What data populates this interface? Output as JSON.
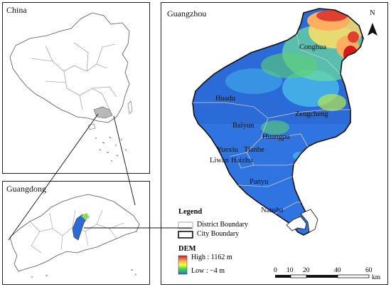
{
  "panels": {
    "china": {
      "title": "China"
    },
    "guangdong": {
      "title": "Guangdong"
    },
    "guangzhou": {
      "title": "Guangzhou"
    }
  },
  "districts": [
    "Conghua",
    "Huadu",
    "Zengcheng",
    "Baiyun",
    "Huangpu",
    "Yuexiu",
    "Tianhe",
    "Liwan",
    "Haizhu",
    "Panyu",
    "Nansha"
  ],
  "legend": {
    "title": "Legend",
    "district_boundary": "District Boundary",
    "city_boundary": "City Boundary",
    "dem_title": "DEM",
    "dem_high": "High : 1162 m",
    "dem_low": "Low : −4 m",
    "colors": {
      "high": "#d7191c",
      "mid_high": "#fdae61",
      "mid": "#ffff40",
      "mid_low": "#40e040",
      "low": "#2b6bd8"
    }
  },
  "scalebar": {
    "ticks": [
      "0",
      "10",
      "20",
      "40",
      "60"
    ],
    "unit": "km"
  },
  "north_arrow": {
    "label": "N",
    "icon": "north-arrow-icon"
  }
}
